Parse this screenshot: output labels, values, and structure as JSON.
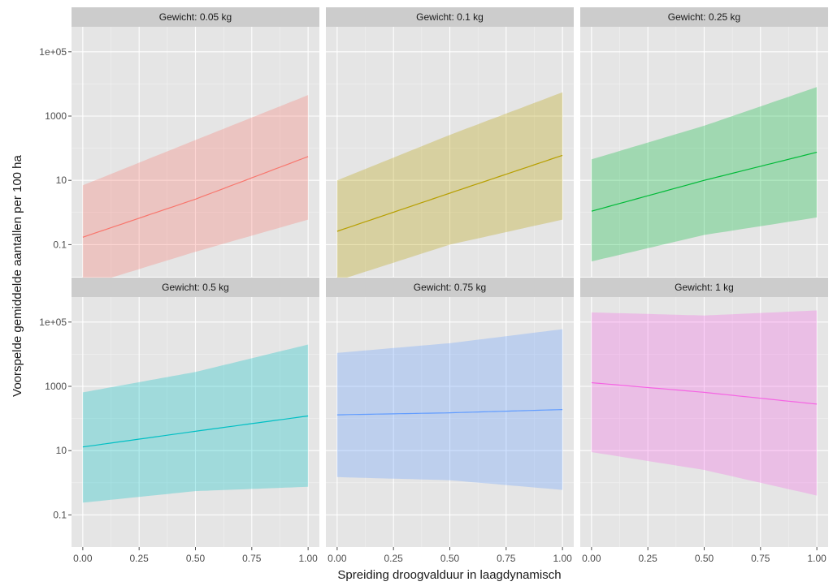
{
  "chart_data": {
    "type": "line",
    "layout": "facet-grid-2x3",
    "xlabel": "Spreiding droogvalduur in laagdynamisch",
    "ylabel": "Voorspelde gemiddelde aantallen per 100 ha",
    "y_scale": "log10",
    "ylim": [
      0.01,
      600000
    ],
    "xlim": [
      -0.05,
      1.05
    ],
    "x_ticks": [
      0,
      0.25,
      0.5,
      0.75,
      1
    ],
    "x_tick_labels": [
      "0.00",
      "0.25",
      "0.50",
      "0.75",
      "1.00"
    ],
    "y_ticks": [
      0.1,
      10,
      1000,
      100000
    ],
    "y_tick_labels": [
      "0.1",
      "10",
      "1000",
      "1e+05"
    ],
    "grid": true,
    "panel_background": "#e5e5e5",
    "strip_background": "#cccccc",
    "panels": [
      {
        "strip_label": "Gewicht: 0.05 kg",
        "color": "#F8766D",
        "x": [
          0,
          0.5,
          1
        ],
        "y": [
          0.17,
          2.6,
          55
        ],
        "lower": [
          0.005,
          0.06,
          0.6
        ],
        "upper": [
          7,
          180,
          4500
        ]
      },
      {
        "strip_label": "Gewicht: 0.1 kg",
        "color": "#B79F00",
        "x": [
          0,
          0.5,
          1
        ],
        "y": [
          0.26,
          4,
          60
        ],
        "lower": [
          0.0075,
          0.1,
          0.6
        ],
        "upper": [
          10,
          260,
          5500
        ]
      },
      {
        "strip_label": "Gewicht: 0.25 kg",
        "color": "#00BA38",
        "x": [
          0,
          0.5,
          1
        ],
        "y": [
          1.1,
          10,
          75
        ],
        "lower": [
          0.03,
          0.2,
          0.7
        ],
        "upper": [
          45,
          500,
          8000
        ]
      },
      {
        "strip_label": "Gewicht: 0.5 kg",
        "color": "#00BFC4",
        "x": [
          0,
          0.5,
          1
        ],
        "y": [
          13,
          40,
          120
        ],
        "lower": [
          0.24,
          0.55,
          0.75
        ],
        "upper": [
          650,
          2800,
          20000
        ]
      },
      {
        "strip_label": "Gewicht: 0.75 kg",
        "color": "#619CFF",
        "x": [
          0,
          0.5,
          1
        ],
        "y": [
          130,
          150,
          190
        ],
        "lower": [
          1.5,
          1.2,
          0.6
        ],
        "upper": [
          11000,
          22000,
          60000
        ]
      },
      {
        "strip_label": "Gewicht: 1 kg",
        "color": "#F564E3",
        "x": [
          0,
          0.5,
          1
        ],
        "y": [
          1300,
          650,
          280
        ],
        "lower": [
          9,
          2.5,
          0.4
        ],
        "upper": [
          200000,
          160000,
          230000
        ]
      }
    ]
  }
}
